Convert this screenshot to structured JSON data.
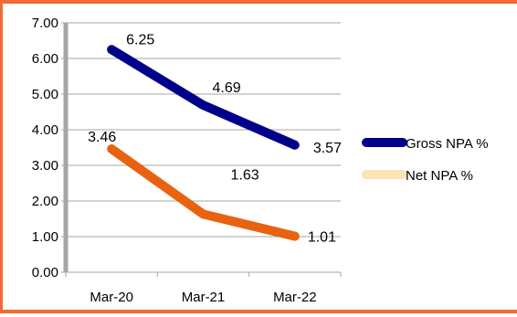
{
  "chart_data": {
    "type": "line",
    "title": "",
    "xlabel": "",
    "ylabel": "",
    "categories": [
      "Mar-20",
      "Mar-21",
      "Mar-22"
    ],
    "ylim": [
      0,
      7
    ],
    "yticks": [
      "0.00",
      "1.00",
      "2.00",
      "3.00",
      "4.00",
      "5.00",
      "6.00",
      "7.00"
    ],
    "grid": true,
    "legend_position": "right",
    "series": [
      {
        "name": "Gross NPA %",
        "values": [
          6.25,
          4.69,
          3.57
        ],
        "labels": [
          "6.25",
          "4.69",
          "3.57"
        ],
        "color": "#00008b",
        "legend_color": "#00008b"
      },
      {
        "name": "Net NPA %",
        "values": [
          3.46,
          1.63,
          1.01
        ],
        "labels": [
          "3.46",
          "1.63",
          "1.01"
        ],
        "color": "#e8620f",
        "legend_color": "#fde3b5"
      }
    ]
  },
  "colors": {
    "frame": "#f26a35",
    "axis": "#a6a6a6",
    "grid": "#a6a6a6"
  }
}
